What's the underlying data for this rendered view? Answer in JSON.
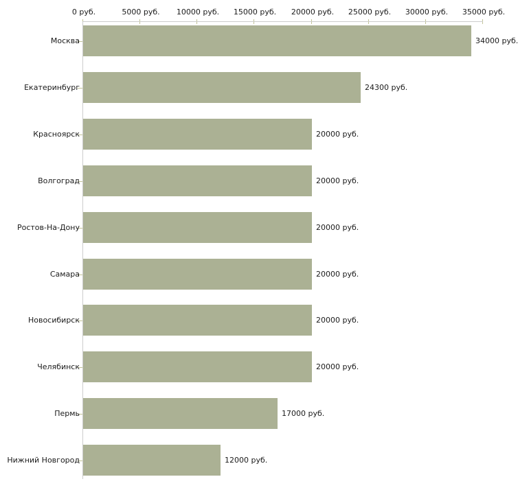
{
  "chart_data": {
    "type": "bar",
    "orientation": "horizontal",
    "title": "",
    "categories": [
      "Москва",
      "Екатеринбург",
      "Красноярск",
      "Волгоград",
      "Ростов-На-Дону",
      "Самара",
      "Новосибирск",
      "Челябинск",
      "Пермь",
      "Нижний Новгород"
    ],
    "values": [
      34000,
      24300,
      20000,
      20000,
      20000,
      20000,
      20000,
      20000,
      17000,
      12000
    ],
    "value_labels": [
      "34000 руб.",
      "24300 руб.",
      "20000 руб.",
      "20000 руб.",
      "20000 руб.",
      "20000 руб.",
      "20000 руб.",
      "20000 руб.",
      "17000 руб.",
      "12000 руб."
    ],
    "x_ticks": [
      0,
      5000,
      10000,
      15000,
      20000,
      25000,
      30000,
      35000
    ],
    "x_tick_labels": [
      "0 руб.",
      "5000 руб.",
      "10000 руб.",
      "15000 руб.",
      "20000 руб.",
      "25000 руб.",
      "30000 руб.",
      "35000 руб."
    ],
    "xlim": [
      0,
      35000
    ],
    "grid": false,
    "legend": "none",
    "colors": {
      "bar": "#abb194",
      "axis": "#cccccc",
      "tick": "#c2c396",
      "text": "#1a1a1a",
      "background": "#ffffff"
    }
  }
}
